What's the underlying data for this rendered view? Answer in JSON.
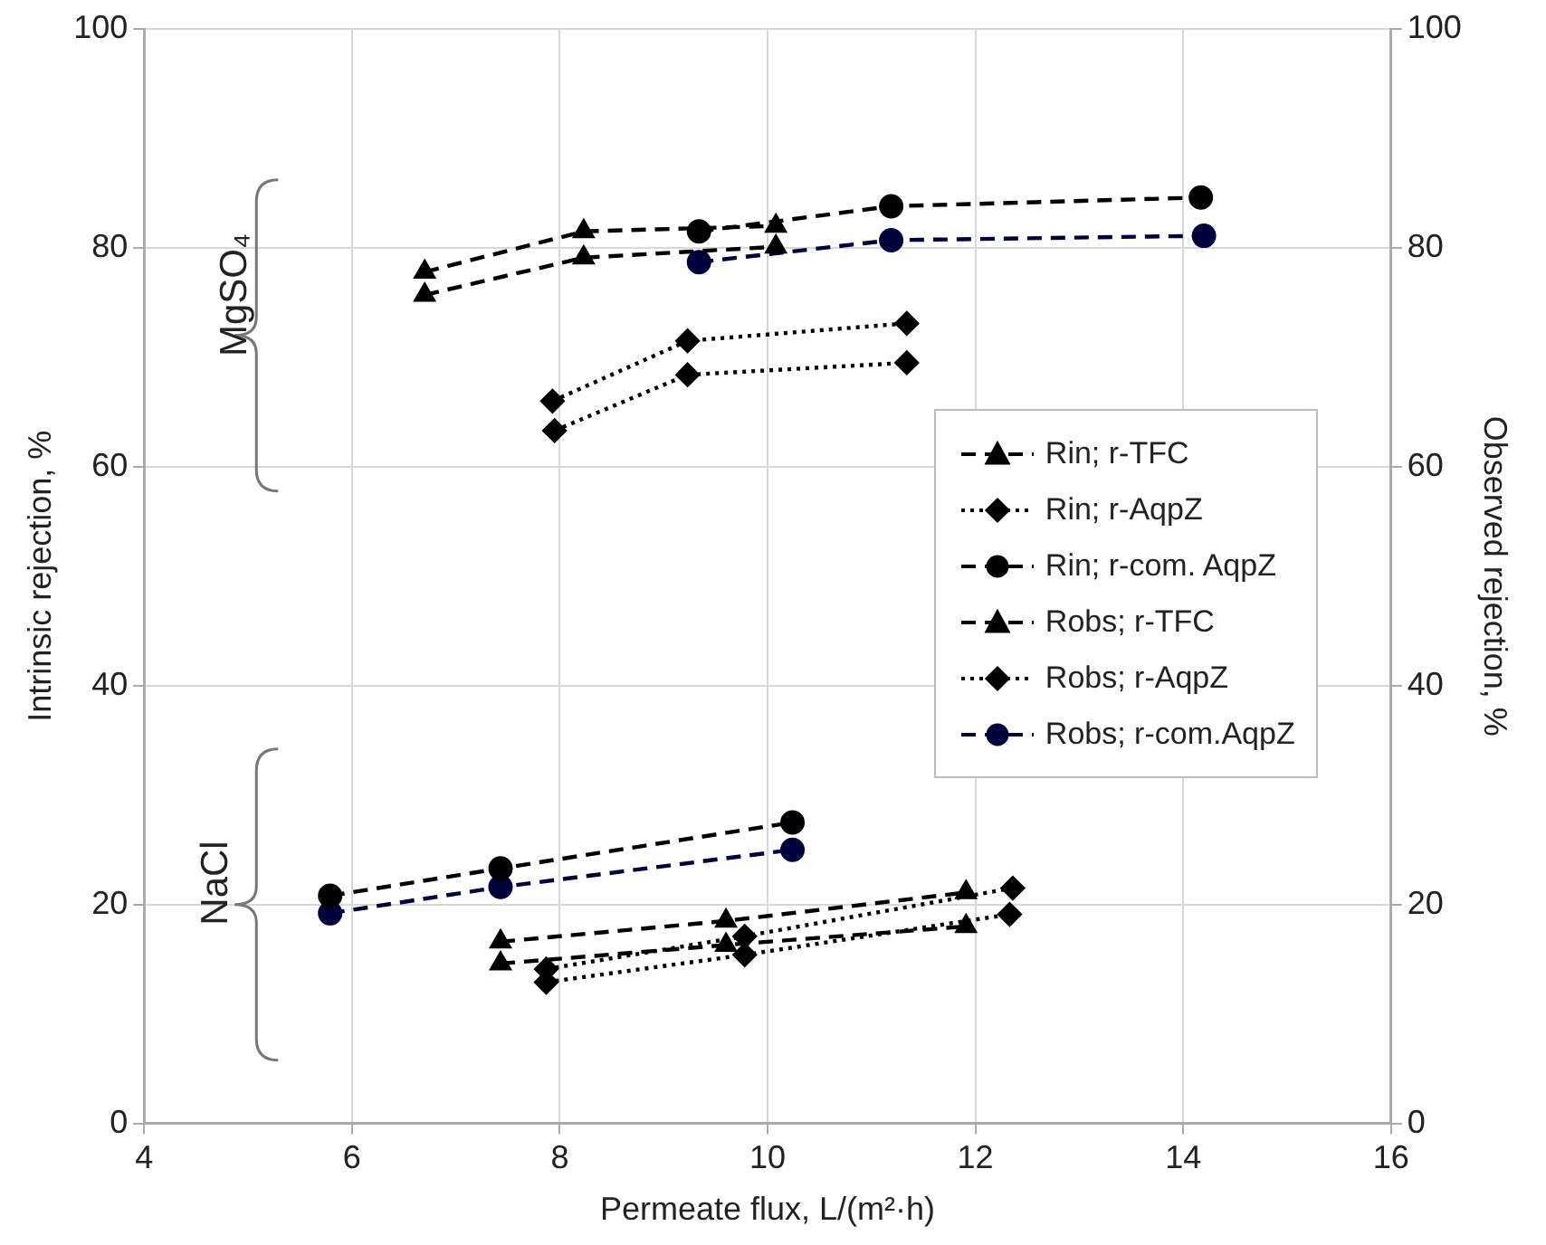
{
  "chart_data": {
    "type": "line",
    "xlabel": "Permeate flux, L/(m²·h)",
    "ylabel": "Intrinsic rejection, %",
    "y2label": "Observed rejection, %",
    "xlim": [
      4,
      16
    ],
    "xticks": [
      4,
      6,
      8,
      10,
      12,
      14,
      16
    ],
    "ylim": [
      0,
      100
    ],
    "yticks": [
      0,
      20,
      40,
      60,
      80,
      100
    ],
    "y2lim": [
      0,
      100
    ],
    "y2ticks": [
      0,
      20,
      40,
      60,
      80,
      100
    ],
    "grid": true,
    "legend": "right",
    "annotations": [
      "MgSO₄",
      "NaCl"
    ],
    "series": [
      {
        "name": "Rin; r-TFC",
        "color": "#000000",
        "marker": "triangle",
        "line_style": "dashed",
        "x": [
          6.7,
          8.23,
          10.08,
          null,
          7.43,
          9.6,
          11.91
        ],
        "values": [
          77.8,
          81.5,
          82.0,
          null,
          16.6,
          18.5,
          21.1
        ]
      },
      {
        "name": "Rin; r-AqpZ",
        "color": "#000000",
        "marker": "diamond",
        "line_style": "dotted",
        "x": [
          7.93,
          9.23,
          11.34,
          null,
          7.87,
          9.78,
          12.36
        ],
        "values": [
          66.0,
          71.5,
          73.1,
          null,
          14.1,
          17.1,
          21.5
        ]
      },
      {
        "name": "Rin; r-com. AqpZ",
        "color": "#000000",
        "marker": "circle",
        "line_style": "dashed",
        "x": [
          9.34,
          11.19,
          14.17,
          null,
          5.79,
          7.43,
          10.24
        ],
        "values": [
          81.5,
          83.8,
          84.6,
          null,
          20.8,
          23.3,
          27.5
        ]
      },
      {
        "name": "Robs; r-TFC",
        "color": "#000000",
        "marker": "triangle",
        "line_style": "dashed",
        "x": [
          6.7,
          8.23,
          10.08,
          null,
          7.43,
          9.6,
          11.91
        ],
        "values": [
          75.7,
          79.1,
          80.1,
          null,
          14.6,
          16.3,
          18.0
        ]
      },
      {
        "name": "Robs; r-AqpZ",
        "color": "#000000",
        "marker": "diamond",
        "line_style": "dotted",
        "x": [
          7.95,
          9.23,
          11.34,
          null,
          7.87,
          9.78,
          12.33
        ],
        "values": [
          63.3,
          68.4,
          69.5,
          null,
          12.9,
          15.4,
          19.1
        ]
      },
      {
        "name": "Robs; r-com.AqpZ",
        "color": "#00003c",
        "marker": "circle",
        "line_style": "dashed",
        "x": [
          9.34,
          11.19,
          14.2,
          null,
          5.79,
          7.43,
          10.24
        ],
        "values": [
          78.7,
          80.7,
          81.1,
          null,
          19.2,
          21.6,
          25.0
        ]
      }
    ]
  }
}
